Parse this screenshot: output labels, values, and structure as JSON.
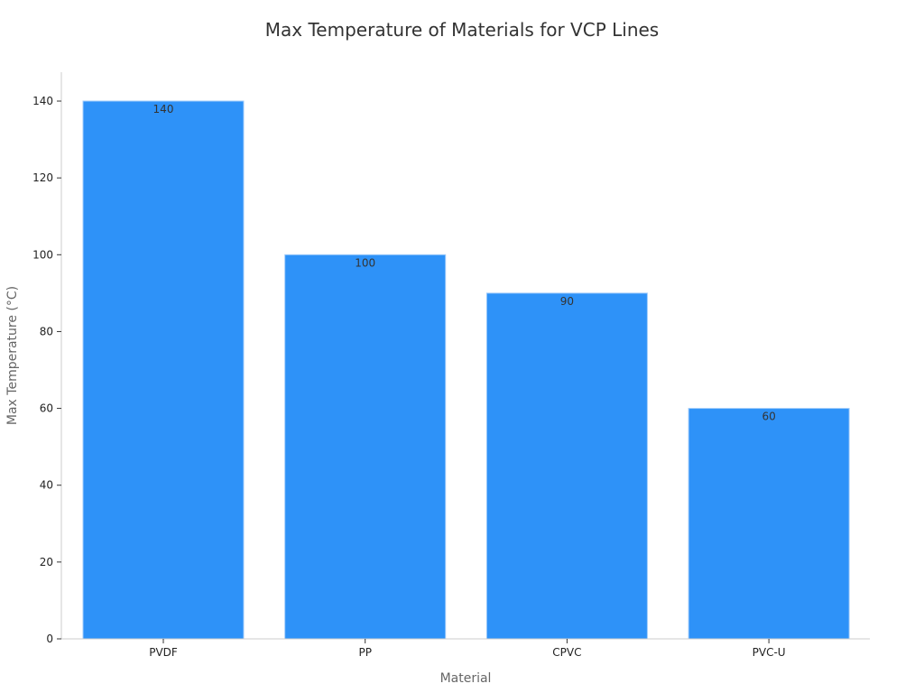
{
  "chart_data": {
    "type": "bar",
    "title": "Max Temperature of Materials for VCP Lines",
    "xlabel": "Material",
    "ylabel": "Max Temperature (°C)",
    "categories": [
      "PVDF",
      "PP",
      "CPVC",
      "PVC-U"
    ],
    "values": [
      140,
      100,
      90,
      60
    ],
    "data_labels": [
      "140",
      "100",
      "90",
      "60"
    ],
    "ylim": [
      0,
      147
    ],
    "yticks": [
      0,
      20,
      40,
      60,
      80,
      100,
      120,
      140
    ],
    "grid": false,
    "legend": "none",
    "bar_color": "#2e92f8",
    "bar_edge_color": "#9fcbfb"
  }
}
